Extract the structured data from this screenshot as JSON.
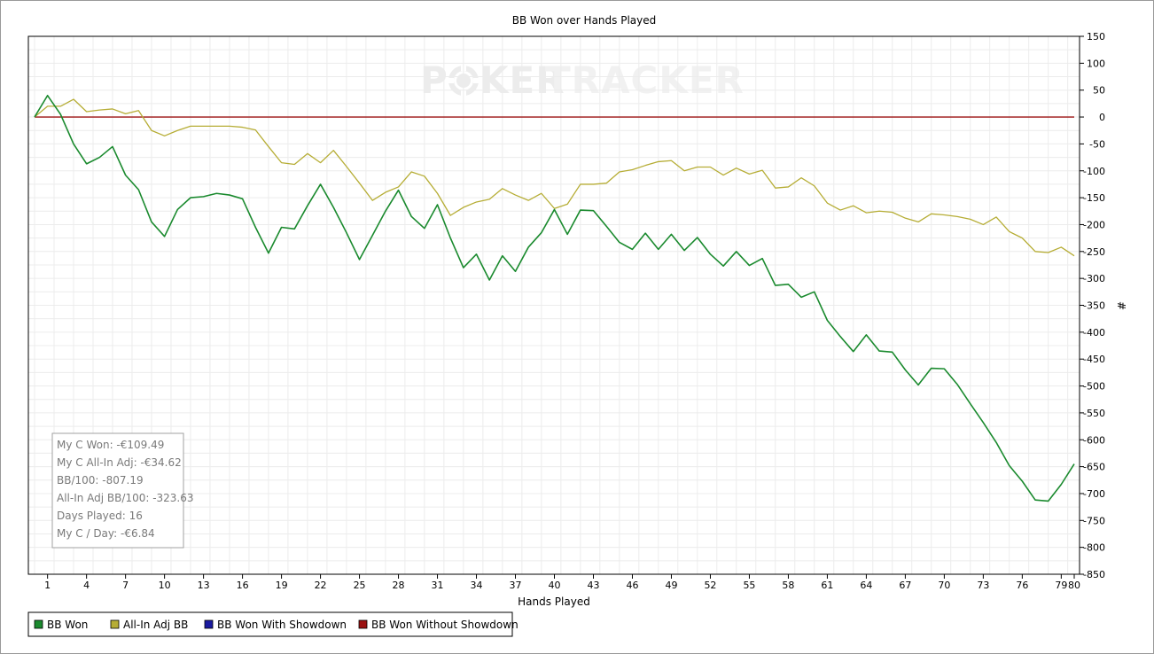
{
  "chart_data": {
    "type": "line",
    "title": "BB Won over Hands Played",
    "xlabel": "Hands Played",
    "ylabel": "#",
    "xlim": [
      0,
      80
    ],
    "ylim": [
      -850,
      150
    ],
    "x_ticks": [
      1,
      4,
      7,
      10,
      13,
      16,
      19,
      22,
      25,
      28,
      31,
      34,
      37,
      40,
      43,
      46,
      49,
      52,
      55,
      58,
      61,
      64,
      67,
      70,
      73,
      76,
      79,
      80
    ],
    "x_tick_labels": [
      "1",
      "4",
      "7",
      "10",
      "13",
      "16",
      "19",
      "22",
      "25",
      "28",
      "31",
      "34",
      "37",
      "40",
      "43",
      "46",
      "49",
      "52",
      "55",
      "58",
      "61",
      "64",
      "67",
      "70",
      "73",
      "76",
      "79",
      "80"
    ],
    "y_ticks": [
      150,
      100,
      50,
      0,
      -50,
      -100,
      -150,
      -200,
      -250,
      -300,
      -350,
      -400,
      -450,
      -500,
      -550,
      -600,
      -650,
      -700,
      -750,
      -800,
      -850
    ],
    "y_tick_labels": [
      "150",
      "100",
      "50",
      "0",
      "-50",
      "-100",
      "-150",
      "-200",
      "-250",
      "-300",
      "-350",
      "-400",
      "-450",
      "-500",
      "-550",
      "-600",
      "-650",
      "-700",
      "-750",
      "-800",
      "-850"
    ],
    "grid": true,
    "y_axis_position": "right",
    "legend_position": "bottom",
    "series": [
      {
        "name": "BB Won",
        "color": "#1a8a2e",
        "x": [
          0,
          1,
          2,
          3,
          4,
          5,
          6,
          7,
          8,
          9,
          10,
          11,
          12,
          13,
          14,
          15,
          16,
          17,
          18,
          19,
          20,
          21,
          22,
          23,
          24,
          25,
          26,
          27,
          28,
          29,
          30,
          31,
          32,
          33,
          34,
          35,
          36,
          37,
          38,
          39,
          40,
          41,
          42,
          43,
          44,
          45,
          46,
          47,
          48,
          49,
          50,
          51,
          52,
          53,
          54,
          55,
          56,
          57,
          58,
          59,
          60,
          61,
          62,
          63,
          64,
          65,
          66,
          67,
          68,
          69,
          70,
          71,
          72,
          73,
          74,
          75,
          76,
          77,
          78,
          79,
          80
        ],
        "values": [
          0,
          40,
          5,
          -50,
          -87,
          -75,
          -55,
          -108,
          -135,
          -195,
          -222,
          -172,
          -150,
          -148,
          -142,
          -145,
          -152,
          -205,
          -253,
          -205,
          -208,
          -165,
          -125,
          -168,
          -215,
          -265,
          -220,
          -175,
          -136,
          -185,
          -207,
          -163,
          -225,
          -280,
          -255,
          -303,
          -258,
          -287,
          -242,
          -215,
          -172,
          -218,
          -173,
          -174,
          -203,
          -233,
          -246,
          -216,
          -246,
          -218,
          -248,
          -224,
          -255,
          -277,
          -250,
          -276,
          -263,
          -313,
          -311,
          -335,
          -325,
          -378,
          -408,
          -436,
          -405,
          -435,
          -437,
          -470,
          -498,
          -467,
          -468,
          -497,
          -533,
          -568,
          -605,
          -648,
          -677,
          -712,
          -714,
          -683,
          -645
        ]
      },
      {
        "name": "All-In Adj BB",
        "color": "#b6ad35",
        "x": [
          0,
          1,
          2,
          3,
          4,
          5,
          6,
          7,
          8,
          9,
          10,
          11,
          12,
          13,
          14,
          15,
          16,
          17,
          18,
          19,
          20,
          21,
          22,
          23,
          24,
          25,
          26,
          27,
          28,
          29,
          30,
          31,
          32,
          33,
          34,
          35,
          36,
          37,
          38,
          39,
          40,
          41,
          42,
          43,
          44,
          45,
          46,
          47,
          48,
          49,
          50,
          51,
          52,
          53,
          54,
          55,
          56,
          57,
          58,
          59,
          60,
          61,
          62,
          63,
          64,
          65,
          66,
          67,
          68,
          69,
          70,
          71,
          72,
          73,
          74,
          75,
          76,
          77,
          78,
          79,
          80
        ],
        "values": [
          0,
          20,
          20,
          33,
          10,
          13,
          15,
          6,
          12,
          -25,
          -35,
          -25,
          -17,
          -17,
          -17,
          -17,
          -19,
          -24,
          -55,
          -85,
          -88,
          -68,
          -85,
          -62,
          -92,
          -123,
          -155,
          -140,
          -130,
          -102,
          -110,
          -142,
          -183,
          -168,
          -158,
          -153,
          -133,
          -145,
          -155,
          -142,
          -170,
          -162,
          -125,
          -125,
          -123,
          -102,
          -98,
          -90,
          -83,
          -81,
          -100,
          -93,
          -93,
          -108,
          -95,
          -106,
          -99,
          -132,
          -130,
          -113,
          -128,
          -160,
          -173,
          -165,
          -178,
          -175,
          -177,
          -188,
          -195,
          -180,
          -182,
          -185,
          -190,
          -200,
          -186,
          -213,
          -225,
          -250,
          -252,
          -242,
          -258
        ]
      },
      {
        "name": "BB Won With Showdown",
        "color": "#1a1aa0",
        "x": [],
        "values": []
      },
      {
        "name": "BB Won Without Showdown",
        "color": "#9b1111",
        "x": [
          0,
          80
        ],
        "values": [
          0,
          0
        ]
      }
    ]
  },
  "watermark": {
    "part1": "P",
    "part2": "KER",
    "part3": "TRACKER"
  },
  "stats": [
    "My C Won: -€109.49",
    "My C All-In Adj: -€34.62",
    "BB/100: -807.19",
    "All-In Adj BB/100: -323.63",
    "Days Played: 16",
    "My C / Day: -€6.84"
  ]
}
